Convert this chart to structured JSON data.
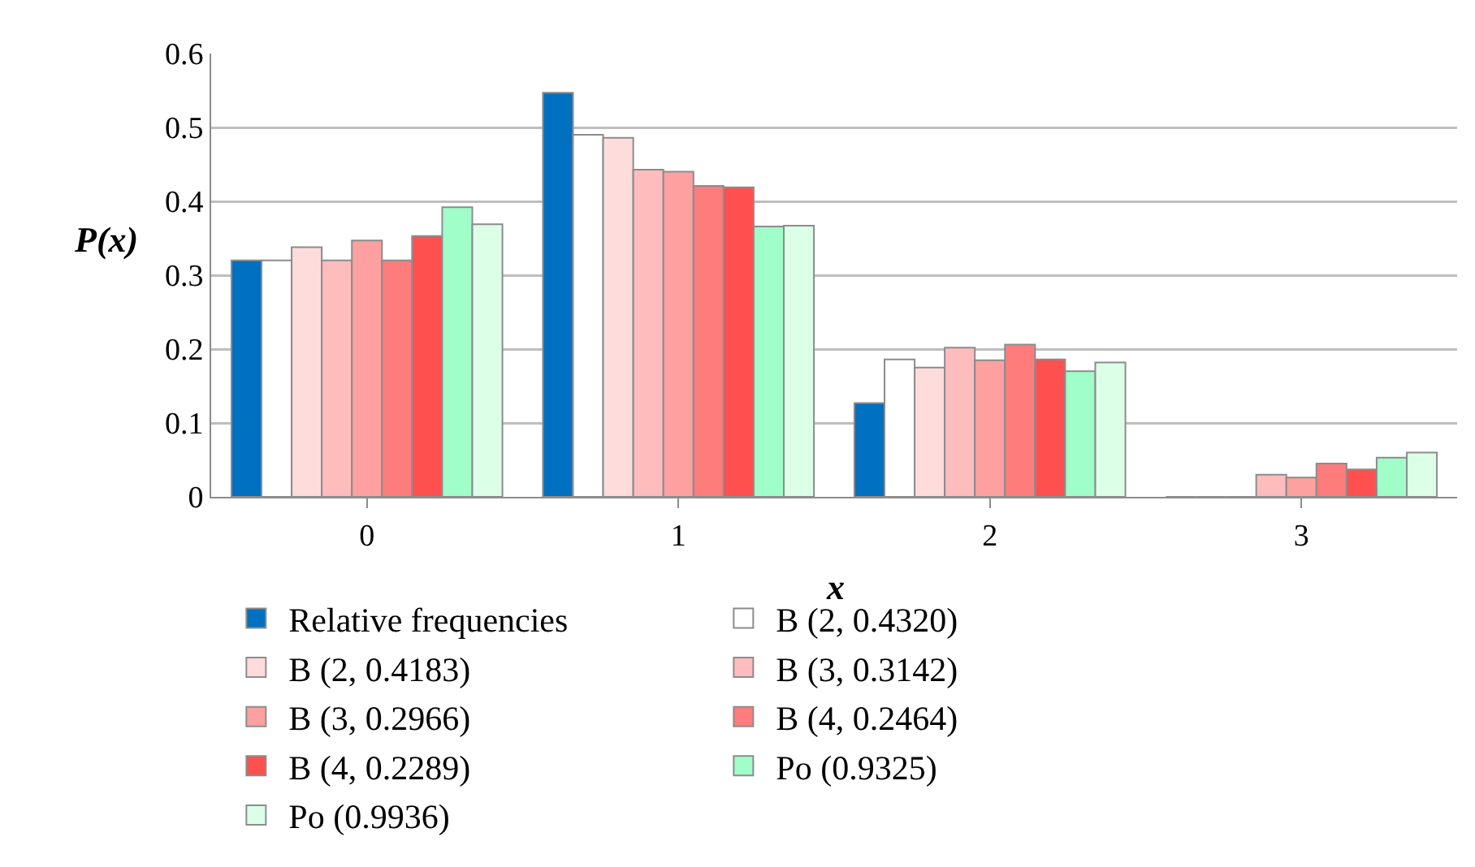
{
  "chart_data": {
    "type": "bar",
    "xlabel": "x",
    "ylabel": "P(x)",
    "categories": [
      "0",
      "1",
      "2",
      "3"
    ],
    "ylim": [
      0,
      0.6
    ],
    "yticks": [
      0,
      0.1,
      0.2,
      0.3,
      0.4,
      0.5,
      0.6
    ],
    "grid": "y",
    "legend": "bottom",
    "series": [
      {
        "name": "Relative frequencies",
        "color": "#0070c0",
        "values": [
          0.32,
          0.547,
          0.127,
          0
        ]
      },
      {
        "name": "B (2, 0.4320)",
        "color": "#ffffff",
        "values": [
          0.32,
          0.49,
          0.186,
          0
        ]
      },
      {
        "name": "B (2, 0.4183)",
        "color": "#ffdcdc",
        "values": [
          0.338,
          0.486,
          0.175,
          0
        ]
      },
      {
        "name": "B (3, 0.3142)",
        "color": "#ffbcbc",
        "values": [
          0.32,
          0.443,
          0.202,
          0.03
        ]
      },
      {
        "name": "B (3, 0.2966)",
        "color": "#ffa0a0",
        "values": [
          0.347,
          0.44,
          0.185,
          0.026
        ]
      },
      {
        "name": "B (4, 0.2464)",
        "color": "#ff7c7c",
        "values": [
          0.32,
          0.421,
          0.206,
          0.045
        ]
      },
      {
        "name": "B (4, 0.2289)",
        "color": "#ff5050",
        "values": [
          0.353,
          0.419,
          0.186,
          0.037
        ]
      },
      {
        "name": "Po (0.9325)",
        "color": "#a0ffc8",
        "values": [
          0.392,
          0.366,
          0.17,
          0.053
        ]
      },
      {
        "name": "Po (0.9936)",
        "color": "#dcffe8",
        "values": [
          0.369,
          0.367,
          0.182,
          0.06
        ]
      }
    ]
  }
}
